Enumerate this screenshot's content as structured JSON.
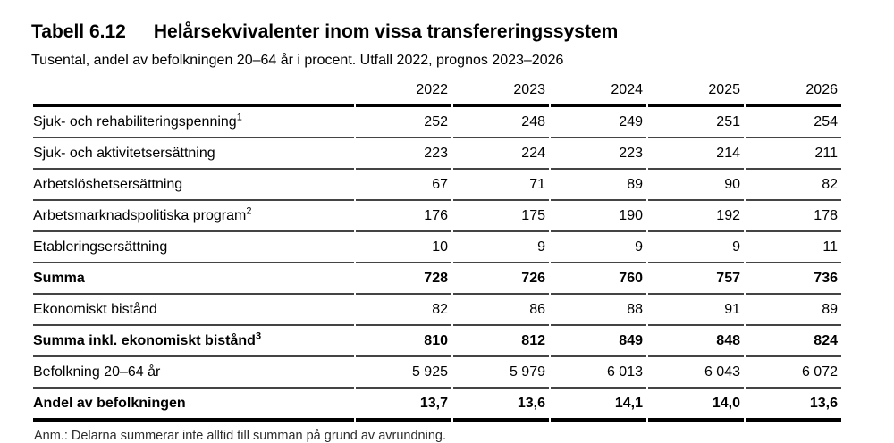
{
  "header": {
    "table_label": "Tabell 6.12",
    "title": "Helårsekvivalenter inom vissa transfereringssystem",
    "subtitle": "Tusental, andel av befolkningen 20–64 år i procent. Utfall 2022, prognos 2023–2026"
  },
  "table": {
    "columns": [
      "2022",
      "2023",
      "2024",
      "2025",
      "2026"
    ],
    "rows": [
      {
        "label": "Sjuk- och rehabiliteringspenning",
        "sup": "1",
        "bold": false,
        "values": [
          "252",
          "248",
          "249",
          "251",
          "254"
        ]
      },
      {
        "label": "Sjuk- och aktivitetsersättning",
        "sup": "",
        "bold": false,
        "values": [
          "223",
          "224",
          "223",
          "214",
          "211"
        ]
      },
      {
        "label": "Arbetslöshetsersättning",
        "sup": "",
        "bold": false,
        "values": [
          "67",
          "71",
          "89",
          "90",
          "82"
        ]
      },
      {
        "label": "Arbetsmarknadspolitiska program",
        "sup": "2",
        "bold": false,
        "values": [
          "176",
          "175",
          "190",
          "192",
          "178"
        ]
      },
      {
        "label": "Etableringsersättning",
        "sup": "",
        "bold": false,
        "values": [
          "10",
          "9",
          "9",
          "9",
          "11"
        ]
      },
      {
        "label": "Summa",
        "sup": "",
        "bold": true,
        "values": [
          "728",
          "726",
          "760",
          "757",
          "736"
        ]
      },
      {
        "label": "Ekonomiskt bistånd",
        "sup": "",
        "bold": false,
        "values": [
          "82",
          "86",
          "88",
          "91",
          "89"
        ]
      },
      {
        "label": "Summa inkl. ekonomiskt bistånd",
        "sup": "3",
        "bold": true,
        "values": [
          "810",
          "812",
          "849",
          "848",
          "824"
        ]
      },
      {
        "label": "Befolkning 20–64 år",
        "sup": "",
        "bold": false,
        "values": [
          "5 925",
          "5 979",
          "6 013",
          "6 043",
          "6 072"
        ]
      },
      {
        "label": "Andel av befolkningen",
        "sup": "",
        "bold": true,
        "values": [
          "13,7",
          "13,6",
          "14,1",
          "14,0",
          "13,6"
        ]
      }
    ]
  },
  "footnote": {
    "text": "Anm.: Delarna summerar inte alltid till summan på grund av avrundning."
  },
  "colors": {
    "text": "#000000",
    "heavy_rule": "#000000",
    "light_rule": "#444444",
    "background": "#ffffff"
  }
}
